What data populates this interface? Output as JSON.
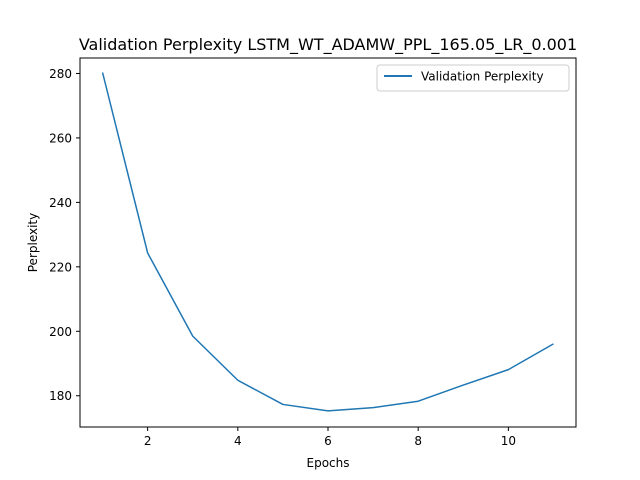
{
  "chart_data": {
    "type": "line",
    "title": "Validation Perplexity LSTM_WT_ADAMW_PPL_165.05_LR_0.001",
    "xlabel": "Epochs",
    "ylabel": "Perplexity",
    "xlim": [
      0.5,
      11.5
    ],
    "ylim": [
      170.3,
      284.8
    ],
    "xticks": [
      2,
      4,
      6,
      8,
      10
    ],
    "yticks": [
      180,
      200,
      220,
      240,
      260,
      280
    ],
    "grid": false,
    "legend_position": "top-right",
    "series": [
      {
        "name": "Validation Perplexity",
        "color": "#1f77b4",
        "x": [
          1,
          2,
          3,
          4,
          5,
          6,
          7,
          8,
          9,
          10,
          11
        ],
        "y": [
          280.3,
          224.3,
          198.5,
          184.8,
          177.3,
          175.3,
          176.3,
          178.3,
          183.3,
          188.1,
          196.1
        ]
      }
    ]
  }
}
